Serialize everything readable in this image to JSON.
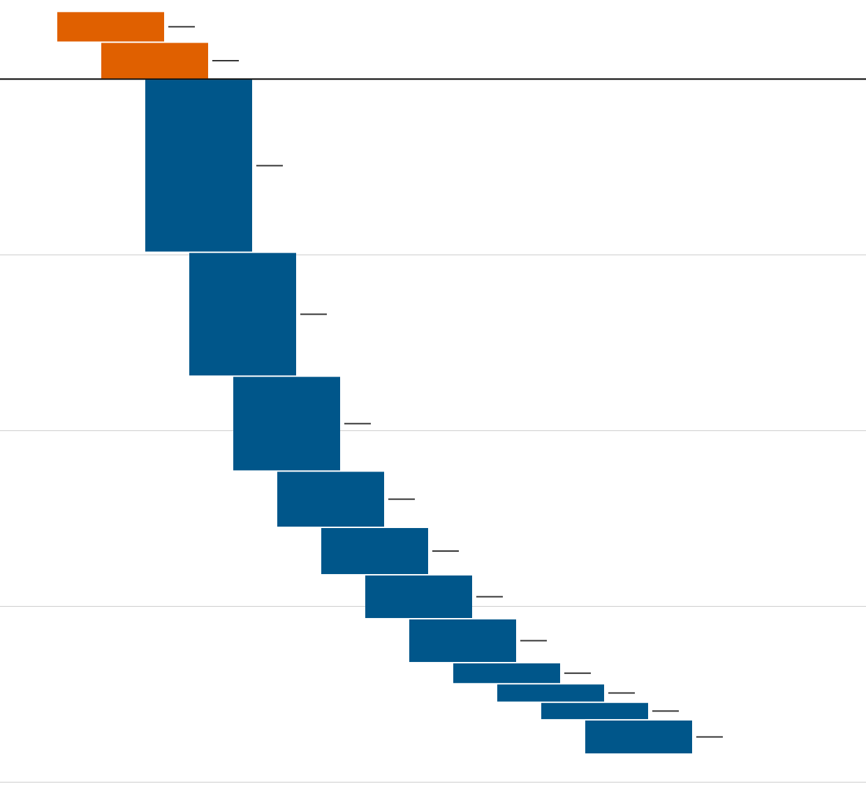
{
  "chart_data": {
    "type": "waterfall",
    "start": 3.85,
    "categories": [
      null,
      null,
      null,
      null,
      null,
      null,
      null,
      null,
      null,
      null,
      null,
      null,
      null
    ],
    "values": [
      -1.75,
      -2.1,
      -9.85,
      -7.05,
      -5.4,
      -3.2,
      -2.7,
      -2.5,
      -2.5,
      -1.2,
      -1.05,
      -1.0,
      -1.95
    ],
    "colors": [
      "#e06000",
      "#e06000",
      "#00568a",
      "#00568a",
      "#00568a",
      "#00568a",
      "#00568a",
      "#00568a",
      "#00568a",
      "#00568a",
      "#00568a",
      "#00568a",
      "#00568a"
    ],
    "ylim": [
      -40.5,
      4.5
    ],
    "yticks": [
      0,
      -10,
      -20,
      -30,
      -40
    ],
    "grid": true
  }
}
